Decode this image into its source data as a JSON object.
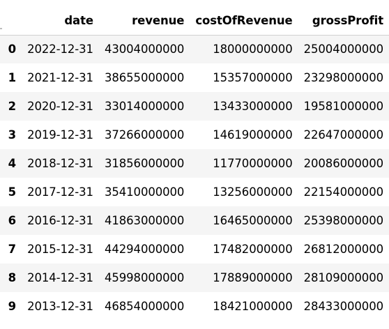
{
  "table": {
    "columns": [
      "",
      "date",
      "revenue",
      "costOfRevenue",
      "grossProfit"
    ],
    "rows": [
      {
        "index": "0",
        "date": "2022-12-31",
        "revenue": "43004000000",
        "costOfRevenue": "18000000000",
        "grossProfit": "25004000000"
      },
      {
        "index": "1",
        "date": "2021-12-31",
        "revenue": "38655000000",
        "costOfRevenue": "15357000000",
        "grossProfit": "23298000000"
      },
      {
        "index": "2",
        "date": "2020-12-31",
        "revenue": "33014000000",
        "costOfRevenue": "13433000000",
        "grossProfit": "19581000000"
      },
      {
        "index": "3",
        "date": "2019-12-31",
        "revenue": "37266000000",
        "costOfRevenue": "14619000000",
        "grossProfit": "22647000000"
      },
      {
        "index": "4",
        "date": "2018-12-31",
        "revenue": "31856000000",
        "costOfRevenue": "11770000000",
        "grossProfit": "20086000000"
      },
      {
        "index": "5",
        "date": "2017-12-31",
        "revenue": "35410000000",
        "costOfRevenue": "13256000000",
        "grossProfit": "22154000000"
      },
      {
        "index": "6",
        "date": "2016-12-31",
        "revenue": "41863000000",
        "costOfRevenue": "16465000000",
        "grossProfit": "25398000000"
      },
      {
        "index": "7",
        "date": "2015-12-31",
        "revenue": "44294000000",
        "costOfRevenue": "17482000000",
        "grossProfit": "26812000000"
      },
      {
        "index": "8",
        "date": "2014-12-31",
        "revenue": "45998000000",
        "costOfRevenue": "17889000000",
        "grossProfit": "28109000000"
      },
      {
        "index": "9",
        "date": "2013-12-31",
        "revenue": "46854000000",
        "costOfRevenue": "18421000000",
        "grossProfit": "28433000000"
      }
    ]
  },
  "colors": {
    "stripe_odd": "#f5f5f5",
    "stripe_even": "#ffffff",
    "header_rule": "#d0d0d0"
  }
}
